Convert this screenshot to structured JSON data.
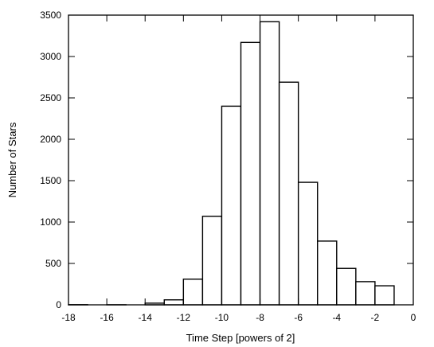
{
  "chart_data": {
    "type": "bar",
    "title": "",
    "xlabel": "Time Step [powers of 2]",
    "ylabel": "Number of Stars",
    "xlim": [
      -18,
      0
    ],
    "ylim": [
      0,
      3500
    ],
    "x_ticks": [
      -18,
      -16,
      -14,
      -12,
      -10,
      -8,
      -6,
      -4,
      -2,
      0
    ],
    "y_ticks": [
      0,
      500,
      1000,
      1500,
      2000,
      2500,
      3000,
      3500
    ],
    "bin_width": 1,
    "bins": [
      {
        "x0": -18,
        "x1": -17,
        "value": 2
      },
      {
        "x0": -17,
        "x1": -16,
        "value": 0
      },
      {
        "x0": -16,
        "x1": -15,
        "value": 1
      },
      {
        "x0": -15,
        "x1": -14,
        "value": 0
      },
      {
        "x0": -14,
        "x1": -13,
        "value": 20
      },
      {
        "x0": -13,
        "x1": -12,
        "value": 60
      },
      {
        "x0": -12,
        "x1": -11,
        "value": 310
      },
      {
        "x0": -11,
        "x1": -10,
        "value": 1070
      },
      {
        "x0": -10,
        "x1": -9,
        "value": 2400
      },
      {
        "x0": -9,
        "x1": -8,
        "value": 3170
      },
      {
        "x0": -8,
        "x1": -7,
        "value": 3420
      },
      {
        "x0": -7,
        "x1": -6,
        "value": 2690
      },
      {
        "x0": -6,
        "x1": -5,
        "value": 1480
      },
      {
        "x0": -5,
        "x1": -4,
        "value": 770
      },
      {
        "x0": -4,
        "x1": -3,
        "value": 440
      },
      {
        "x0": -3,
        "x1": -2,
        "value": 280
      },
      {
        "x0": -2,
        "x1": -1,
        "value": 230
      }
    ],
    "grid": false,
    "legend": "none",
    "colors": {
      "bar_fill": "#ffffff",
      "bar_stroke": "#000000",
      "axis": "#000000",
      "background": "#ffffff"
    }
  }
}
